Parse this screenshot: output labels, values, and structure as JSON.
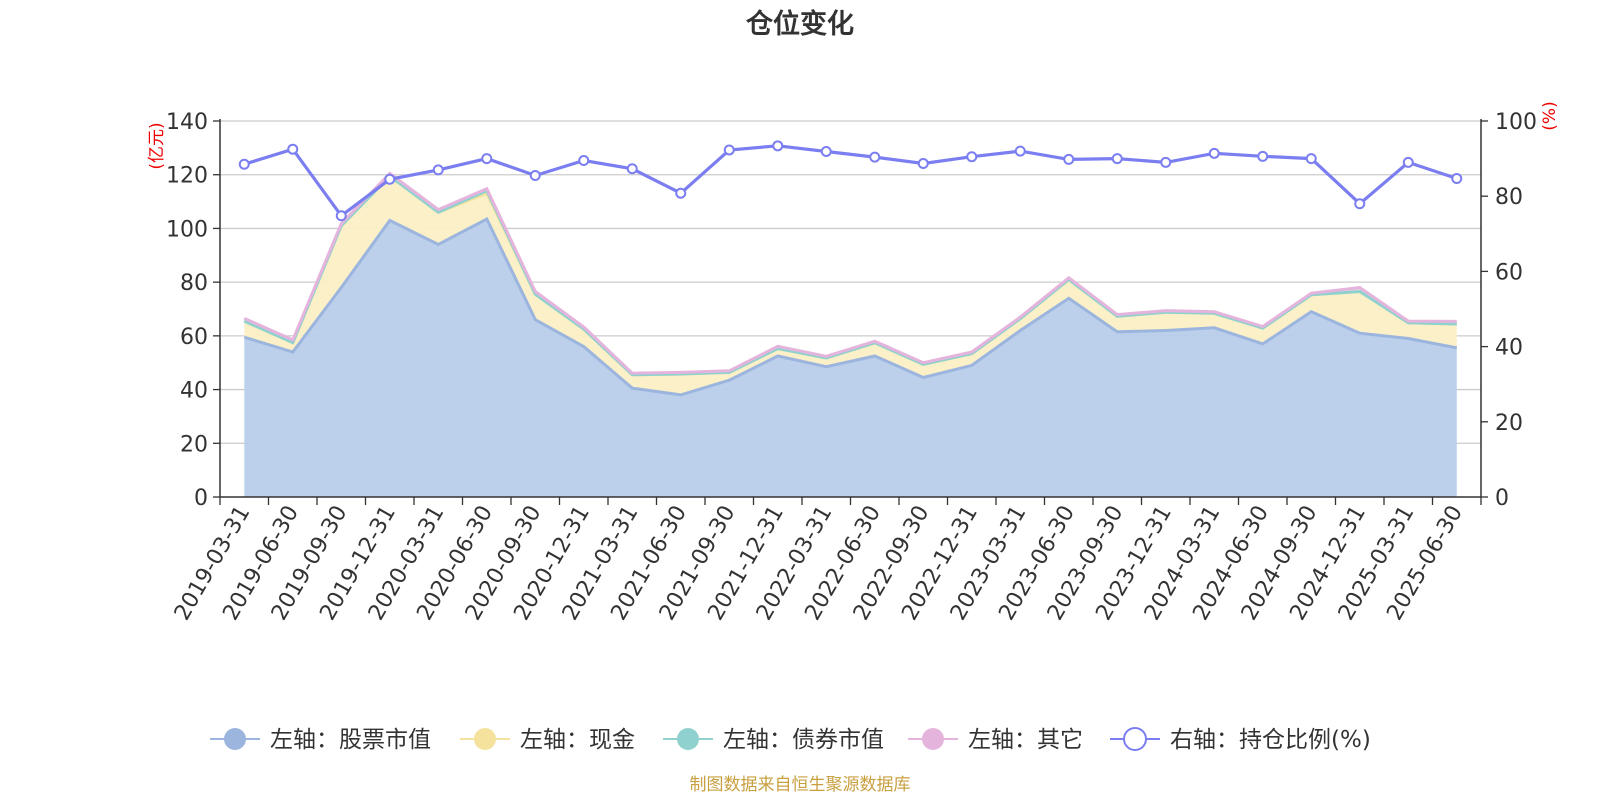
{
  "chart_data": {
    "type": "area",
    "title": "仓位变化",
    "left_axis_unit": "(亿元)",
    "right_axis_unit": "(%)",
    "ylim_left": [
      0,
      140
    ],
    "ylim_right": [
      0,
      100
    ],
    "left_ticks": [
      0,
      20,
      40,
      60,
      80,
      100,
      120,
      140
    ],
    "right_ticks": [
      0,
      20,
      40,
      60,
      80,
      100
    ],
    "grid": true,
    "legend_position": "bottom",
    "categories": [
      "2019-03-31",
      "2019-06-30",
      "2019-09-30",
      "2019-12-31",
      "2020-03-31",
      "2020-06-30",
      "2020-09-30",
      "2020-12-31",
      "2021-03-31",
      "2021-06-30",
      "2021-09-30",
      "2021-12-31",
      "2022-03-31",
      "2022-06-30",
      "2022-09-30",
      "2022-12-31",
      "2023-03-31",
      "2023-06-30",
      "2023-09-30",
      "2023-12-31",
      "2024-03-31",
      "2024-06-30",
      "2024-09-30",
      "2024-12-31",
      "2025-03-31",
      "2025-06-30"
    ],
    "stacked_series": [
      {
        "name": "左轴：股票市值",
        "color": "#9bb5de",
        "fill": "#b8cdeb",
        "values": [
          59.5,
          54,
          78,
          103,
          94,
          103.5,
          66,
          56,
          40.5,
          38,
          43.5,
          52.5,
          48.5,
          52.5,
          44.5,
          49,
          62,
          74,
          61.5,
          62,
          63,
          57,
          69,
          61,
          59,
          55.5
        ]
      },
      {
        "name": "左轴：现金",
        "color": "#f5e39d",
        "fill": "#fbefc4",
        "values": [
          6,
          3.5,
          23,
          16.5,
          12,
          9.5,
          9.5,
          6.5,
          5,
          7.8,
          2.9,
          2.8,
          3.3,
          4.9,
          4.9,
          4.4,
          4.4,
          7,
          5.8,
          6.8,
          5.4,
          5.9,
          6.3,
          15.5,
          5.9,
          8.9
        ]
      },
      {
        "name": "左轴：债券市值",
        "color": "#8fd1cf",
        "fill": "#b6e3e1",
        "values": [
          0,
          0,
          0,
          0,
          0,
          1,
          0,
          0,
          0,
          0,
          0,
          0,
          0,
          0,
          0,
          0,
          0,
          0,
          0,
          0,
          0,
          0,
          0,
          0,
          0,
          0
        ]
      },
      {
        "name": "左轴：其它",
        "color": "#e5b4dc",
        "fill": "#eccbe6",
        "values": [
          1,
          1,
          0.8,
          1,
          1,
          0.8,
          1,
          0.8,
          0.6,
          0.6,
          0.6,
          0.8,
          0.6,
          0.6,
          0.6,
          0.6,
          0.6,
          0.6,
          0.6,
          0.6,
          0.6,
          0.6,
          0.6,
          1.5,
          0.6,
          1
        ]
      }
    ],
    "line_series": {
      "name": "右轴：持仓比例(%)",
      "color": "#7b7ef0",
      "values": [
        88.5,
        92.5,
        74.8,
        84.5,
        87,
        90,
        85.5,
        89.5,
        87.3,
        80.8,
        92.3,
        93.4,
        91.9,
        90.4,
        88.7,
        90.5,
        92,
        89.8,
        90,
        89,
        91.4,
        90.6,
        90,
        78,
        89,
        84.7
      ]
    },
    "source_note": "制图数据来自恒生聚源数据库"
  }
}
